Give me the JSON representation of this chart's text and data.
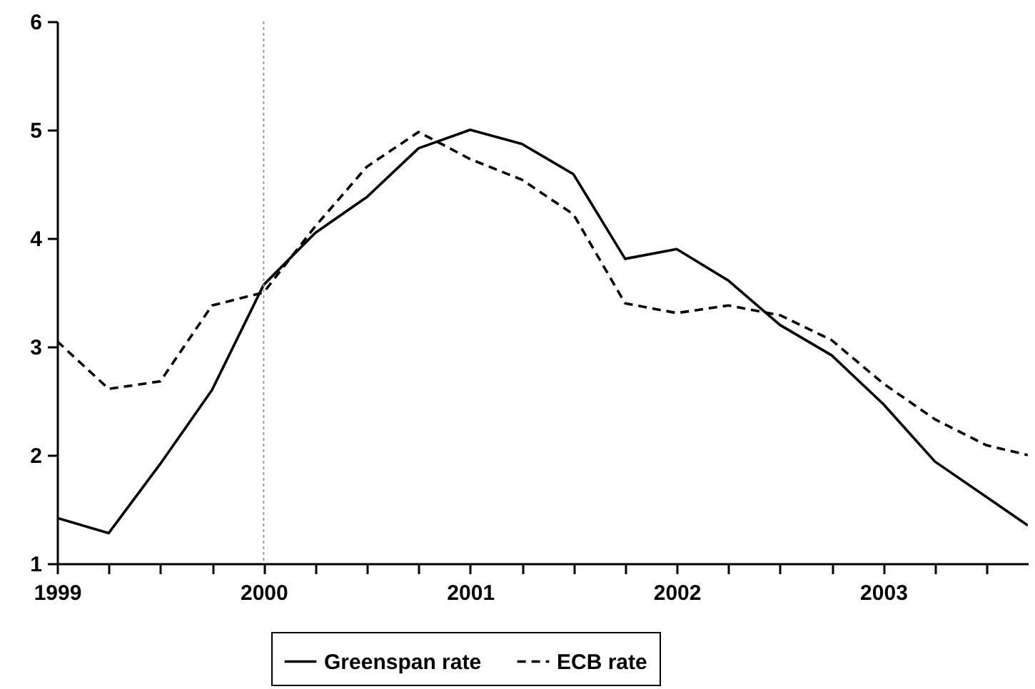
{
  "chart_data": {
    "type": "line",
    "x": [
      1999,
      1999.25,
      1999.5,
      1999.75,
      2000,
      2000.25,
      2000.5,
      2000.75,
      2001,
      2001.25,
      2001.5,
      2001.75,
      2002,
      2002.25,
      2002.5,
      2002.75,
      2003,
      2003.25,
      2003.7
    ],
    "series": [
      {
        "name": "Greenspan rate",
        "color": "#000000",
        "line_style": "solid",
        "values": [
          1.42,
          1.28,
          1.92,
          2.6,
          3.57,
          4.05,
          4.38,
          4.83,
          5.0,
          4.87,
          4.59,
          3.81,
          3.9,
          3.61,
          3.2,
          2.92,
          2.47,
          1.94,
          1.35
        ]
      },
      {
        "name": "ECB rate",
        "color": "#000000",
        "line_style": "dashed",
        "x": [
          1999,
          1999.25,
          1999.5,
          1999.75,
          2000,
          2000.25,
          2000.5,
          2000.75,
          2001,
          2001.25,
          2001.5,
          2001.75,
          2002,
          2002.25,
          2002.5,
          2002.75,
          2003,
          2003.25,
          2003.5,
          2003.7
        ],
        "values": [
          3.05,
          2.61,
          2.68,
          3.38,
          3.5,
          4.11,
          4.66,
          4.98,
          4.73,
          4.54,
          4.22,
          3.4,
          3.31,
          3.38,
          3.29,
          3.06,
          2.66,
          2.33,
          2.09,
          2.0
        ]
      }
    ],
    "xlim": [
      1999,
      2003.7
    ],
    "xticks": [
      1999,
      {
        "value": 1999.25,
        "label": null
      },
      {
        "value": 1999.5,
        "label": null
      },
      {
        "value": 1999.75,
        "label": null
      },
      2000,
      {
        "value": 2000.25,
        "label": null
      },
      {
        "value": 2000.5,
        "label": null
      },
      {
        "value": 2000.75,
        "label": null
      },
      2001,
      {
        "value": 2001.25,
        "label": null
      },
      {
        "value": 2001.5,
        "label": null
      },
      {
        "value": 2001.75,
        "label": null
      },
      2002,
      {
        "value": 2002.25,
        "label": null
      },
      {
        "value": 2002.5,
        "label": null
      },
      {
        "value": 2002.75,
        "label": null
      },
      2003,
      {
        "value": 2003.25,
        "label": null
      },
      {
        "value": 2003.5,
        "label": null
      }
    ],
    "ylim": [
      1,
      6
    ],
    "yticks": [
      1,
      2,
      3,
      4,
      5,
      6
    ],
    "ref_lines": [
      {
        "axis": "x",
        "value": 2000,
        "color": "#999999",
        "line_style": "dotted"
      }
    ],
    "grid": false,
    "legend": "bottom"
  }
}
